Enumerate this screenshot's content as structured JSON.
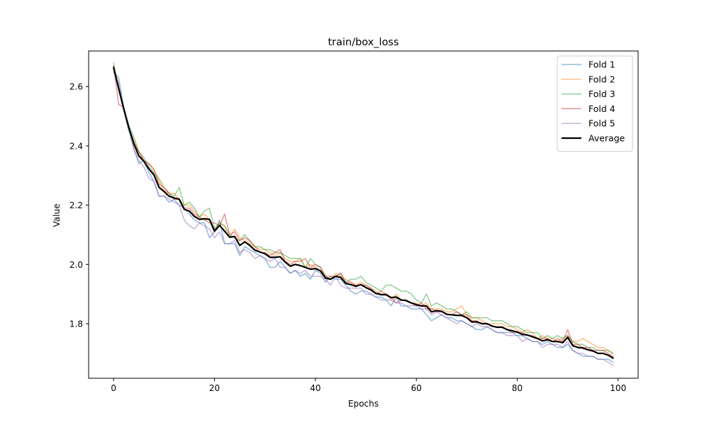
{
  "chart_data": {
    "type": "line",
    "title": "train/box_loss",
    "xlabel": "Epochs",
    "ylabel": "Value",
    "xlim": [
      -4.95,
      103.95
    ],
    "ylim": [
      1.616,
      2.72
    ],
    "xticks": [
      0,
      20,
      40,
      60,
      80,
      100
    ],
    "yticks": [
      1.8,
      2.0,
      2.2,
      2.4,
      2.6
    ],
    "ytick_labels": [
      "1.8",
      "2.0",
      "2.2",
      "2.4",
      "2.6"
    ],
    "grid": false,
    "legend_position": "top-right",
    "x": [
      0,
      1,
      2,
      3,
      4,
      5,
      6,
      7,
      8,
      9,
      10,
      11,
      12,
      13,
      14,
      15,
      16,
      17,
      18,
      19,
      20,
      21,
      22,
      23,
      24,
      25,
      26,
      27,
      28,
      29,
      30,
      31,
      32,
      33,
      34,
      35,
      36,
      37,
      38,
      39,
      40,
      41,
      42,
      43,
      44,
      45,
      46,
      47,
      48,
      49,
      50,
      51,
      52,
      53,
      54,
      55,
      56,
      57,
      58,
      59,
      60,
      61,
      62,
      63,
      64,
      65,
      66,
      67,
      68,
      69,
      70,
      71,
      72,
      73,
      74,
      75,
      76,
      77,
      78,
      79,
      80,
      81,
      82,
      83,
      84,
      85,
      86,
      87,
      88,
      89,
      90,
      91,
      92,
      93,
      94,
      95,
      96,
      97,
      98,
      99
    ],
    "series": [
      {
        "name": "Fold 1",
        "color": "#1f77b4",
        "opacity": 0.5,
        "width": 1.5,
        "values": [
          2.65,
          2.63,
          2.53,
          2.47,
          2.39,
          2.34,
          2.35,
          2.31,
          2.28,
          2.23,
          2.23,
          2.21,
          2.22,
          2.2,
          2.19,
          2.17,
          2.15,
          2.14,
          2.14,
          2.09,
          2.11,
          2.15,
          2.07,
          2.07,
          2.07,
          2.03,
          2.06,
          2.05,
          2.04,
          2.03,
          2.02,
          1.99,
          1.99,
          2.01,
          1.99,
          1.97,
          1.98,
          1.96,
          1.97,
          1.95,
          1.98,
          1.97,
          1.94,
          1.96,
          1.95,
          1.95,
          1.93,
          1.91,
          1.9,
          1.91,
          1.91,
          1.9,
          1.89,
          1.89,
          1.88,
          1.86,
          1.89,
          1.86,
          1.86,
          1.85,
          1.85,
          1.85,
          1.83,
          1.81,
          1.82,
          1.83,
          1.82,
          1.82,
          1.81,
          1.81,
          1.8,
          1.79,
          1.78,
          1.78,
          1.79,
          1.78,
          1.77,
          1.77,
          1.77,
          1.77,
          1.76,
          1.76,
          1.75,
          1.74,
          1.74,
          1.73,
          1.74,
          1.73,
          1.72,
          1.72,
          1.73,
          1.71,
          1.7,
          1.69,
          1.69,
          1.69,
          1.68,
          1.68,
          1.68,
          1.67
        ]
      },
      {
        "name": "Fold 2",
        "color": "#ff7f0e",
        "opacity": 0.5,
        "width": 1.5,
        "values": [
          2.67,
          2.6,
          2.53,
          2.46,
          2.42,
          2.38,
          2.35,
          2.34,
          2.32,
          2.28,
          2.25,
          2.24,
          2.24,
          2.22,
          2.2,
          2.2,
          2.18,
          2.16,
          2.17,
          2.15,
          2.12,
          2.14,
          2.13,
          2.09,
          2.12,
          2.09,
          2.08,
          2.07,
          2.06,
          2.05,
          2.05,
          2.04,
          2.03,
          2.04,
          2.02,
          2.01,
          2.01,
          2.02,
          1.99,
          2.0,
          1.99,
          1.98,
          1.96,
          1.95,
          1.97,
          1.96,
          1.95,
          1.94,
          1.93,
          1.94,
          1.93,
          1.92,
          1.91,
          1.9,
          1.9,
          1.88,
          1.9,
          1.88,
          1.88,
          1.87,
          1.87,
          1.86,
          1.87,
          1.85,
          1.85,
          1.85,
          1.84,
          1.84,
          1.85,
          1.86,
          1.83,
          1.82,
          1.82,
          1.81,
          1.8,
          1.8,
          1.8,
          1.8,
          1.79,
          1.79,
          1.78,
          1.77,
          1.78,
          1.77,
          1.75,
          1.76,
          1.75,
          1.75,
          1.74,
          1.75,
          1.76,
          1.74,
          1.74,
          1.75,
          1.74,
          1.73,
          1.72,
          1.72,
          1.71,
          1.7
        ]
      },
      {
        "name": "Fold 3",
        "color": "#2ca02c",
        "opacity": 0.5,
        "width": 1.5,
        "values": [
          2.68,
          2.59,
          2.52,
          2.47,
          2.43,
          2.38,
          2.36,
          2.33,
          2.31,
          2.29,
          2.26,
          2.24,
          2.23,
          2.26,
          2.2,
          2.21,
          2.19,
          2.16,
          2.18,
          2.19,
          2.12,
          2.14,
          2.13,
          2.1,
          2.09,
          2.08,
          2.1,
          2.08,
          2.06,
          2.06,
          2.05,
          2.05,
          2.04,
          2.04,
          2.03,
          2.02,
          2.02,
          2.02,
          1.99,
          2.02,
          2.0,
          1.99,
          1.96,
          1.95,
          1.96,
          1.97,
          1.94,
          1.95,
          1.95,
          1.96,
          1.94,
          1.93,
          1.92,
          1.91,
          1.93,
          1.93,
          1.92,
          1.91,
          1.91,
          1.9,
          1.88,
          1.87,
          1.9,
          1.86,
          1.87,
          1.86,
          1.85,
          1.85,
          1.84,
          1.83,
          1.84,
          1.82,
          1.82,
          1.82,
          1.82,
          1.81,
          1.81,
          1.81,
          1.8,
          1.79,
          1.79,
          1.78,
          1.77,
          1.77,
          1.77,
          1.75,
          1.76,
          1.75,
          1.76,
          1.75,
          1.76,
          1.74,
          1.73,
          1.73,
          1.72,
          1.72,
          1.71,
          1.71,
          1.71,
          1.7
        ]
      },
      {
        "name": "Fold 4",
        "color": "#d62728",
        "opacity": 0.5,
        "width": 1.5,
        "values": [
          2.67,
          2.54,
          2.53,
          2.46,
          2.41,
          2.38,
          2.35,
          2.34,
          2.32,
          2.27,
          2.26,
          2.24,
          2.22,
          2.22,
          2.19,
          2.19,
          2.17,
          2.16,
          2.15,
          2.14,
          2.14,
          2.13,
          2.17,
          2.1,
          2.11,
          2.08,
          2.09,
          2.08,
          2.06,
          2.04,
          2.04,
          2.03,
          2.04,
          2.05,
          2.01,
          2.0,
          2.01,
          2.01,
          2.02,
          1.99,
          2.0,
          1.99,
          1.96,
          1.96,
          1.96,
          1.97,
          1.94,
          1.94,
          1.93,
          1.93,
          1.93,
          1.92,
          1.9,
          1.91,
          1.9,
          1.89,
          1.87,
          1.88,
          1.88,
          1.87,
          1.86,
          1.87,
          1.85,
          1.85,
          1.84,
          1.84,
          1.83,
          1.83,
          1.84,
          1.83,
          1.83,
          1.81,
          1.81,
          1.8,
          1.8,
          1.79,
          1.79,
          1.79,
          1.78,
          1.77,
          1.77,
          1.77,
          1.76,
          1.76,
          1.75,
          1.75,
          1.75,
          1.74,
          1.75,
          1.74,
          1.78,
          1.73,
          1.73,
          1.72,
          1.72,
          1.71,
          1.71,
          1.71,
          1.7,
          1.69
        ]
      },
      {
        "name": "Fold 5",
        "color": "#9467bd",
        "opacity": 0.5,
        "width": 1.5,
        "values": [
          2.65,
          2.61,
          2.52,
          2.45,
          2.39,
          2.35,
          2.33,
          2.29,
          2.28,
          2.23,
          2.23,
          2.22,
          2.21,
          2.2,
          2.15,
          2.13,
          2.12,
          2.14,
          2.13,
          2.12,
          2.09,
          2.11,
          2.07,
          2.07,
          2.08,
          2.04,
          2.05,
          2.04,
          2.02,
          2.03,
          2.02,
          2.01,
          2.02,
          1.99,
          1.99,
          1.97,
          1.98,
          1.97,
          1.98,
          1.96,
          1.96,
          1.96,
          1.95,
          1.93,
          1.96,
          1.93,
          1.92,
          1.92,
          1.92,
          1.92,
          1.9,
          1.9,
          1.89,
          1.88,
          1.88,
          1.88,
          1.87,
          1.87,
          1.86,
          1.86,
          1.86,
          1.85,
          1.85,
          1.83,
          1.84,
          1.83,
          1.82,
          1.81,
          1.8,
          1.81,
          1.8,
          1.79,
          1.8,
          1.79,
          1.79,
          1.78,
          1.77,
          1.77,
          1.76,
          1.76,
          1.76,
          1.74,
          1.75,
          1.74,
          1.74,
          1.72,
          1.73,
          1.73,
          1.73,
          1.72,
          1.74,
          1.71,
          1.7,
          1.7,
          1.69,
          1.69,
          1.68,
          1.68,
          1.67,
          1.66
        ]
      },
      {
        "name": "Average",
        "color": "#000000",
        "opacity": 1.0,
        "width": 2.2,
        "values": [
          2.664,
          2.594,
          2.526,
          2.462,
          2.408,
          2.366,
          2.348,
          2.322,
          2.302,
          2.26,
          2.246,
          2.23,
          2.224,
          2.22,
          2.186,
          2.18,
          2.162,
          2.152,
          2.154,
          2.152,
          2.112,
          2.132,
          2.112,
          2.092,
          2.094,
          2.064,
          2.076,
          2.064,
          2.048,
          2.042,
          2.036,
          2.024,
          2.024,
          2.026,
          2.008,
          1.994,
          2.0,
          1.996,
          1.99,
          1.984,
          1.986,
          1.978,
          1.954,
          1.95,
          1.96,
          1.956,
          1.936,
          1.932,
          1.926,
          1.932,
          1.922,
          1.914,
          1.902,
          1.898,
          1.898,
          1.888,
          1.89,
          1.88,
          1.878,
          1.87,
          1.864,
          1.86,
          1.86,
          1.84,
          1.844,
          1.842,
          1.832,
          1.83,
          1.828,
          1.828,
          1.82,
          1.806,
          1.806,
          1.8,
          1.8,
          1.792,
          1.788,
          1.788,
          1.78,
          1.776,
          1.772,
          1.764,
          1.762,
          1.756,
          1.75,
          1.742,
          1.746,
          1.74,
          1.74,
          1.736,
          1.754,
          1.726,
          1.72,
          1.718,
          1.712,
          1.708,
          1.7,
          1.7,
          1.694,
          1.684
        ]
      }
    ]
  }
}
